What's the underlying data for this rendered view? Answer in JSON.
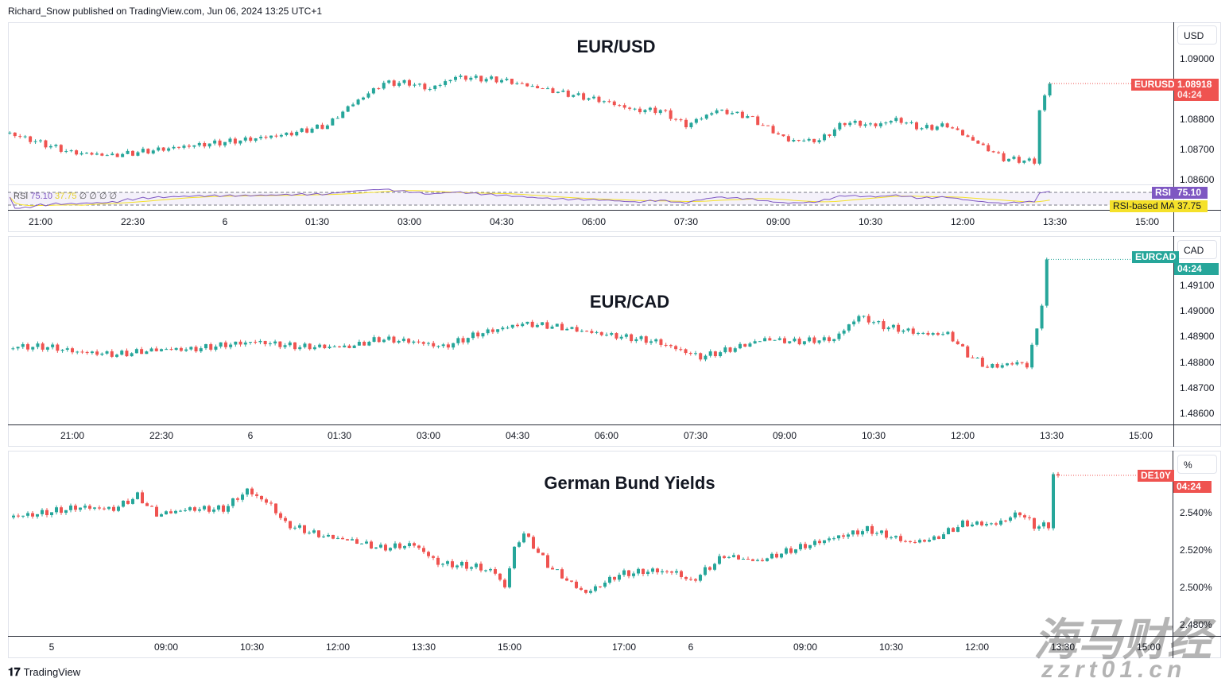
{
  "header": {
    "text": "Richard_Snow published on TradingView.com, Jun 06, 2024 13:25 UTC+1"
  },
  "footer": {
    "logo": "TradingView"
  },
  "watermark": {
    "line1": "海马财经",
    "line2": "zzrt01.cn"
  },
  "colors": {
    "up": "#26a69a",
    "down": "#ef5350",
    "rsi": "#7e57c2",
    "rsi_ma": "#f5e12a"
  },
  "chart_data": [
    {
      "type": "candlestick",
      "title": "EUR/USD",
      "symbol": "EURUSD",
      "currency": "USD",
      "price": "1.08918",
      "countdown": "04:24",
      "ylim": [
        1.0858,
        1.0912
      ],
      "yticks": [
        "1.09000",
        "1.08800",
        "1.08700",
        "1.08600"
      ],
      "xticks": [
        {
          "label": "21:00",
          "time": "21:00"
        },
        {
          "label": "22:30",
          "time": "22:30"
        },
        {
          "label": "6",
          "time": "00:00"
        },
        {
          "label": "01:30",
          "time": "01:30"
        },
        {
          "label": "03:00",
          "time": "03:00"
        },
        {
          "label": "04:30",
          "time": "04:30"
        },
        {
          "label": "06:00",
          "time": "06:00"
        },
        {
          "label": "07:30",
          "time": "07:30"
        },
        {
          "label": "09:00",
          "time": "09:00"
        },
        {
          "label": "10:30",
          "time": "10:30"
        },
        {
          "label": "12:00",
          "time": "12:00"
        },
        {
          "label": "13:30",
          "time": "13:30"
        },
        {
          "label": "15:00",
          "time": "15:00"
        }
      ],
      "closes": [
        [
          "20:30",
          1.08753
        ],
        [
          "21:30",
          1.0869
        ],
        [
          "22:10",
          1.0868
        ],
        [
          "23:20",
          1.0871
        ],
        [
          "00:15",
          1.0873
        ],
        [
          "01:00",
          1.0875
        ],
        [
          "01:40",
          1.0878
        ],
        [
          "02:00",
          1.0884
        ],
        [
          "02:35",
          1.0892
        ],
        [
          "03:00",
          1.0892
        ],
        [
          "03:20",
          1.089
        ],
        [
          "03:45",
          1.0894
        ],
        [
          "04:30",
          1.0893
        ],
        [
          "05:25",
          1.0889
        ],
        [
          "06:10",
          1.0886
        ],
        [
          "06:40",
          1.0883
        ],
        [
          "07:05",
          1.0883
        ],
        [
          "07:30",
          1.0878
        ],
        [
          "08:00",
          1.0883
        ],
        [
          "08:30",
          1.0881
        ],
        [
          "09:10",
          1.0873
        ],
        [
          "09:40",
          1.0873
        ],
        [
          "10:05",
          1.0879
        ],
        [
          "10:35",
          1.0878
        ],
        [
          "10:55",
          1.088
        ],
        [
          "11:20",
          1.0877
        ],
        [
          "11:45",
          1.0878
        ],
        [
          "12:15",
          1.0872
        ],
        [
          "12:40",
          1.0867
        ],
        [
          "13:10",
          1.0866
        ],
        [
          "13:15",
          1.0883
        ],
        [
          "13:25",
          1.08918
        ]
      ],
      "rsi": {
        "label": "RSI",
        "value": "75.10",
        "ma_label": "RSI-based MA",
        "ma_value": "37.75",
        "legend": "RSI",
        "legend_extra": "∅ ∅ ∅ ∅"
      }
    },
    {
      "type": "candlestick",
      "title": "EUR/CAD",
      "symbol": "EURCAD",
      "currency": "CAD",
      "countdown": "04:24",
      "ylim": [
        1.4855,
        1.4925
      ],
      "yticks": [
        "1.49100",
        "1.49000",
        "1.48900",
        "1.48800",
        "1.48700",
        "1.48600"
      ],
      "xticks": [
        {
          "label": "21:00",
          "time": "21:00"
        },
        {
          "label": "22:30",
          "time": "22:30"
        },
        {
          "label": "6",
          "time": "00:00"
        },
        {
          "label": "01:30",
          "time": "01:30"
        },
        {
          "label": "03:00",
          "time": "03:00"
        },
        {
          "label": "04:30",
          "time": "04:30"
        },
        {
          "label": "06:00",
          "time": "06:00"
        },
        {
          "label": "07:30",
          "time": "07:30"
        },
        {
          "label": "09:00",
          "time": "09:00"
        },
        {
          "label": "10:30",
          "time": "10:30"
        },
        {
          "label": "12:00",
          "time": "12:00"
        },
        {
          "label": "13:30",
          "time": "13:30"
        },
        {
          "label": "15:00",
          "time": "15:00"
        }
      ],
      "closes": [
        [
          "20:00",
          1.4886
        ],
        [
          "20:35",
          1.4886
        ],
        [
          "21:05",
          1.4884
        ],
        [
          "21:45",
          1.4883
        ],
        [
          "22:30",
          1.4885
        ],
        [
          "23:00",
          1.4885
        ],
        [
          "23:40",
          1.4887
        ],
        [
          "00:05",
          1.4888
        ],
        [
          "00:50",
          1.4886
        ],
        [
          "01:40",
          1.4886
        ],
        [
          "02:10",
          1.4889
        ],
        [
          "02:45",
          1.4888
        ],
        [
          "03:15",
          1.4886
        ],
        [
          "03:50",
          1.4891
        ],
        [
          "04:35",
          1.4895
        ],
        [
          "05:05",
          1.4894
        ],
        [
          "05:55",
          1.4891
        ],
        [
          "06:50",
          1.4888
        ],
        [
          "07:35",
          1.4882
        ],
        [
          "08:05",
          1.4885
        ],
        [
          "08:40",
          1.4889
        ],
        [
          "09:10",
          1.4888
        ],
        [
          "09:50",
          1.4889
        ],
        [
          "10:15",
          1.4898
        ],
        [
          "10:40",
          1.4894
        ],
        [
          "11:20",
          1.4891
        ],
        [
          "11:45",
          1.4891
        ],
        [
          "12:05",
          1.4883
        ],
        [
          "12:25",
          1.4878
        ],
        [
          "13:00",
          1.488
        ],
        [
          "13:05",
          1.4878
        ],
        [
          "13:20",
          1.4902
        ],
        [
          "13:25",
          1.492
        ]
      ]
    },
    {
      "type": "candlestick",
      "title": "German Bund Yields",
      "symbol": "DE10Y",
      "currency": "%",
      "countdown": "04:24",
      "ylim": [
        2.47,
        2.57
      ],
      "yticks": [
        "2.540%",
        "2.520%",
        "2.500%",
        "2.480%"
      ],
      "xticks": [
        {
          "label": "5",
          "day": 5,
          "time": "07:00"
        },
        {
          "label": "09:00",
          "day": 5,
          "time": "09:00"
        },
        {
          "label": "10:30",
          "day": 5,
          "time": "10:30"
        },
        {
          "label": "12:00",
          "day": 5,
          "time": "12:00"
        },
        {
          "label": "13:30",
          "day": 5,
          "time": "13:30"
        },
        {
          "label": "15:00",
          "day": 5,
          "time": "15:00"
        },
        {
          "label": "17:00",
          "day": 5,
          "time": "17:00"
        },
        {
          "label": "6",
          "day": 6,
          "time": "07:00"
        },
        {
          "label": "09:00",
          "day": 6,
          "time": "09:00"
        },
        {
          "label": "10:30",
          "day": 6,
          "time": "10:30"
        },
        {
          "label": "12:00",
          "day": 6,
          "time": "12:00"
        },
        {
          "label": "13:30",
          "day": 6,
          "time": "13:30"
        },
        {
          "label": "15:00",
          "day": 6,
          "time": "15:00"
        }
      ],
      "closes": [
        [
          5,
          "06:15",
          2.538
        ],
        [
          5,
          "06:40",
          2.539
        ],
        [
          5,
          "07:05",
          2.541
        ],
        [
          5,
          "07:30",
          2.543
        ],
        [
          5,
          "08:05",
          2.542
        ],
        [
          5,
          "08:30",
          2.549
        ],
        [
          5,
          "08:50",
          2.539
        ],
        [
          5,
          "09:25",
          2.542
        ],
        [
          5,
          "10:00",
          2.542
        ],
        [
          5,
          "10:25",
          2.552
        ],
        [
          5,
          "10:50",
          2.544
        ],
        [
          5,
          "11:05",
          2.534
        ],
        [
          5,
          "11:40",
          2.528
        ],
        [
          5,
          "12:15",
          2.525
        ],
        [
          5,
          "12:45",
          2.521
        ],
        [
          5,
          "13:20",
          2.523
        ],
        [
          5,
          "13:45",
          2.513
        ],
        [
          5,
          "14:25",
          2.511
        ],
        [
          5,
          "14:45",
          2.508
        ],
        [
          5,
          "14:55",
          2.5
        ],
        [
          5,
          "15:05",
          2.521
        ],
        [
          5,
          "15:15",
          2.529
        ],
        [
          5,
          "15:40",
          2.512
        ],
        [
          5,
          "16:05",
          2.502
        ],
        [
          5,
          "16:20",
          2.497
        ],
        [
          5,
          "16:55",
          2.507
        ],
        [
          5,
          "17:30",
          2.509
        ],
        [
          5,
          "17:55",
          2.508
        ],
        [
          6,
          "07:00",
          2.503
        ],
        [
          6,
          "07:35",
          2.517
        ],
        [
          6,
          "08:10",
          2.514
        ],
        [
          6,
          "08:45",
          2.52
        ],
        [
          6,
          "09:25",
          2.526
        ],
        [
          6,
          "10:05",
          2.531
        ],
        [
          6,
          "10:50",
          2.524
        ],
        [
          6,
          "11:15",
          2.526
        ],
        [
          6,
          "11:45",
          2.534
        ],
        [
          6,
          "12:20",
          2.534
        ],
        [
          6,
          "12:45",
          2.54
        ],
        [
          6,
          "13:00",
          2.533
        ],
        [
          6,
          "13:15",
          2.533
        ],
        [
          6,
          "13:20",
          2.561
        ],
        [
          6,
          "13:25",
          2.56
        ]
      ]
    }
  ]
}
